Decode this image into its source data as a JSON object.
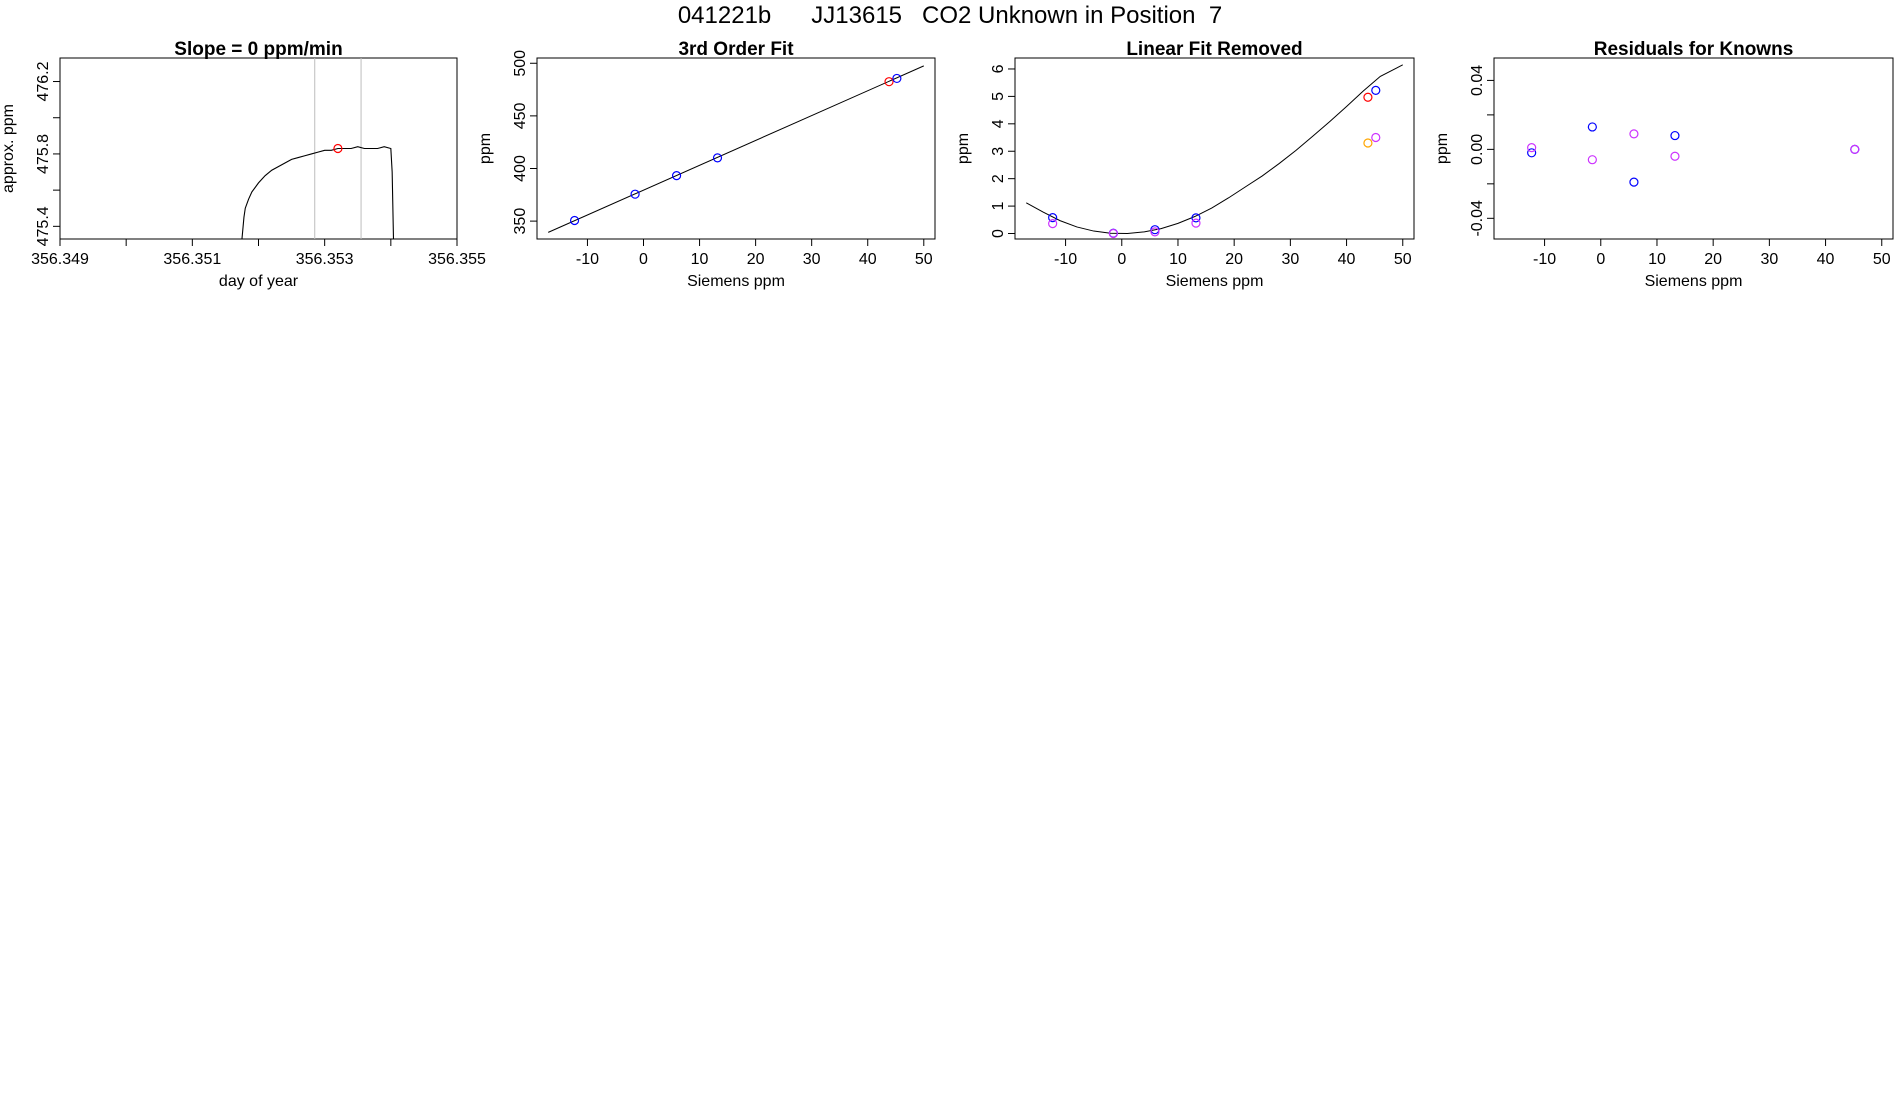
{
  "header": {
    "title": "041221b      JJ13615   CO2 Unknown in Position  7"
  },
  "colors": {
    "axis": "#000000",
    "curve": "#000000",
    "vline": "#bdbdbd",
    "blue": "#0000ff",
    "red": "#ff0000",
    "magenta": "#cc33ff",
    "orange": "#ffa500"
  },
  "chart_data": [
    {
      "id": "p1",
      "type": "line",
      "title": "Slope =  0  ppm/min",
      "xlabel": "day of year",
      "ylabel": "approx. ppm",
      "xlim": [
        356.349,
        356.355
      ],
      "ylim": [
        475.33,
        476.33
      ],
      "xticks": [
        356.349,
        356.35,
        356.351,
        356.352,
        356.353,
        356.354,
        356.355
      ],
      "xtick_labels": [
        "356.349",
        "",
        "356.351",
        "",
        "356.353",
        "",
        "356.355"
      ],
      "yticks": [
        475.4,
        475.6,
        475.8,
        476.0,
        476.2
      ],
      "ytick_labels": [
        "475.4",
        "",
        "475.8",
        "",
        "476.2"
      ],
      "vlines": [
        356.35285,
        356.35355
      ],
      "series": [
        {
          "values": [
            [
              356.35175,
              475.33
            ],
            [
              356.35178,
              475.45
            ],
            [
              356.3518,
              475.5
            ],
            [
              356.35185,
              475.55
            ],
            [
              356.3519,
              475.59
            ],
            [
              356.352,
              475.64
            ],
            [
              356.3521,
              475.68
            ],
            [
              356.3522,
              475.71
            ],
            [
              356.3523,
              475.73
            ],
            [
              356.3524,
              475.75
            ],
            [
              356.3525,
              475.77
            ],
            [
              356.3526,
              475.78
            ],
            [
              356.3527,
              475.79
            ],
            [
              356.3528,
              475.8
            ],
            [
              356.3529,
              475.81
            ],
            [
              356.353,
              475.82
            ],
            [
              356.3531,
              475.82
            ],
            [
              356.3532,
              475.83
            ],
            [
              356.3533,
              475.83
            ],
            [
              356.3534,
              475.83
            ],
            [
              356.3535,
              475.84
            ],
            [
              356.3536,
              475.83
            ],
            [
              356.3537,
              475.83
            ],
            [
              356.3538,
              475.83
            ],
            [
              356.3539,
              475.84
            ],
            [
              356.354,
              475.83
            ],
            [
              356.35402,
              475.7
            ],
            [
              356.35404,
              475.33
            ]
          ]
        }
      ],
      "markers": [
        {
          "x": 356.3532,
          "y": 475.83,
          "color": "red"
        }
      ]
    },
    {
      "id": "p2",
      "type": "scatter",
      "title": "3rd Order Fit",
      "xlabel": "Siemens ppm",
      "ylabel": "ppm",
      "xlim": [
        -19,
        52
      ],
      "ylim": [
        333,
        505
      ],
      "xticks": [
        -10,
        0,
        10,
        20,
        30,
        40,
        50
      ],
      "xtick_labels": [
        "-10",
        "0",
        "10",
        "20",
        "30",
        "40",
        "50"
      ],
      "yticks": [
        350,
        400,
        450,
        500
      ],
      "ytick_labels": [
        "350",
        "400",
        "450",
        "500"
      ],
      "fit_line": [
        [
          -17,
          339.3
        ],
        [
          50,
          497.5
        ]
      ],
      "points": [
        {
          "x": -12.3,
          "y": 350.6,
          "color": "blue"
        },
        {
          "x": -1.5,
          "y": 375.6,
          "color": "blue"
        },
        {
          "x": 5.9,
          "y": 393.2,
          "color": "blue"
        },
        {
          "x": 13.2,
          "y": 410.1,
          "color": "blue"
        },
        {
          "x": 43.8,
          "y": 482.5,
          "color": "red"
        },
        {
          "x": 45.2,
          "y": 485.6,
          "color": "blue"
        }
      ]
    },
    {
      "id": "p3",
      "type": "scatter",
      "title": "Linear Fit Removed",
      "xlabel": "Siemens ppm",
      "ylabel": "ppm",
      "xlim": [
        -19,
        52
      ],
      "ylim": [
        -0.2,
        6.4
      ],
      "xticks": [
        -10,
        0,
        10,
        20,
        30,
        40,
        50
      ],
      "xtick_labels": [
        "-10",
        "0",
        "10",
        "20",
        "30",
        "40",
        "50"
      ],
      "yticks": [
        0,
        1,
        2,
        3,
        4,
        5,
        6
      ],
      "ytick_labels": [
        "0",
        "1",
        "2",
        "3",
        "4",
        "5",
        "6"
      ],
      "curve": [
        [
          -17,
          1.12
        ],
        [
          -14,
          0.78
        ],
        [
          -11,
          0.47
        ],
        [
          -8,
          0.24
        ],
        [
          -5,
          0.09
        ],
        [
          -2,
          0.01
        ],
        [
          1,
          0.0
        ],
        [
          4,
          0.06
        ],
        [
          7,
          0.18
        ],
        [
          10,
          0.37
        ],
        [
          13,
          0.62
        ],
        [
          16,
          0.93
        ],
        [
          19,
          1.3
        ],
        [
          22,
          1.7
        ],
        [
          25,
          2.1
        ],
        [
          28,
          2.55
        ],
        [
          31,
          3.03
        ],
        [
          34,
          3.55
        ],
        [
          37,
          4.08
        ],
        [
          40,
          4.63
        ],
        [
          43,
          5.2
        ],
        [
          46,
          5.73
        ],
        [
          50,
          6.15
        ]
      ],
      "points": [
        {
          "x": -12.3,
          "y": 0.58,
          "color": "blue"
        },
        {
          "x": -12.3,
          "y": 0.36,
          "color": "magenta"
        },
        {
          "x": -1.5,
          "y": 0.01,
          "color": "blue"
        },
        {
          "x": -1.5,
          "y": 0.0,
          "color": "magenta"
        },
        {
          "x": 5.9,
          "y": 0.14,
          "color": "blue"
        },
        {
          "x": 5.9,
          "y": 0.06,
          "color": "magenta"
        },
        {
          "x": 13.2,
          "y": 0.57,
          "color": "blue"
        },
        {
          "x": 13.2,
          "y": 0.38,
          "color": "magenta"
        },
        {
          "x": 43.8,
          "y": 4.97,
          "color": "red"
        },
        {
          "x": 45.2,
          "y": 5.22,
          "color": "blue"
        },
        {
          "x": 43.8,
          "y": 3.3,
          "color": "orange"
        },
        {
          "x": 45.2,
          "y": 3.5,
          "color": "magenta"
        }
      ]
    },
    {
      "id": "p4",
      "type": "scatter",
      "title": "Residuals for Knowns",
      "xlabel": "Siemens ppm",
      "ylabel": "ppm",
      "xlim": [
        -19,
        52
      ],
      "ylim": [
        -0.052,
        0.053
      ],
      "xticks": [
        -10,
        0,
        10,
        20,
        30,
        40,
        50
      ],
      "xtick_labels": [
        "-10",
        "0",
        "10",
        "20",
        "30",
        "40",
        "50"
      ],
      "yticks": [
        -0.04,
        -0.02,
        0.0,
        0.02,
        0.04
      ],
      "ytick_labels": [
        "-0.04",
        "",
        "0.00",
        "",
        "0.04"
      ],
      "points": [
        {
          "x": -12.3,
          "y": -0.002,
          "color": "blue"
        },
        {
          "x": -12.3,
          "y": 0.001,
          "color": "magenta"
        },
        {
          "x": -1.5,
          "y": 0.013,
          "color": "blue"
        },
        {
          "x": -1.5,
          "y": -0.006,
          "color": "magenta"
        },
        {
          "x": 5.9,
          "y": -0.019,
          "color": "blue"
        },
        {
          "x": 5.9,
          "y": 0.009,
          "color": "magenta"
        },
        {
          "x": 13.2,
          "y": 0.008,
          "color": "blue"
        },
        {
          "x": 13.2,
          "y": -0.004,
          "color": "magenta"
        },
        {
          "x": 45.2,
          "y": 0.0,
          "color": "blue"
        },
        {
          "x": 45.2,
          "y": 0.0,
          "color": "magenta"
        }
      ]
    }
  ]
}
